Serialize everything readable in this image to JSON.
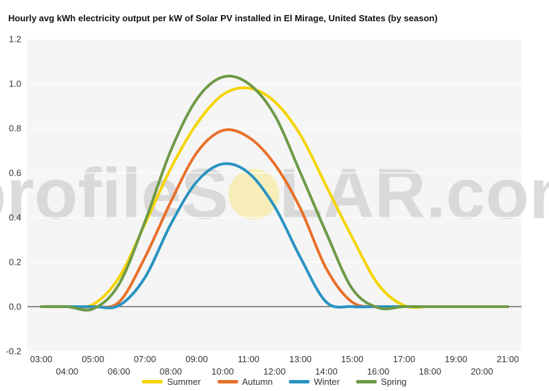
{
  "chart_data": {
    "type": "line",
    "title": "Hourly avg kWh electricity output per kW of Solar PV installed in El Mirage, United States (by season)",
    "x": [
      "03:00",
      "04:00",
      "05:00",
      "06:00",
      "07:00",
      "08:00",
      "09:00",
      "10:00",
      "11:00",
      "12:00",
      "13:00",
      "14:00",
      "15:00",
      "16:00",
      "17:00",
      "18:00",
      "19:00",
      "20:00",
      "21:00"
    ],
    "ylim": [
      -0.2,
      1.2
    ],
    "yticks": [
      -0.2,
      0.0,
      0.2,
      0.4,
      0.6,
      0.8,
      1.0,
      1.2
    ],
    "grid": true,
    "legend_position": "bottom",
    "series": [
      {
        "name": "Summer",
        "color": "#f5d400",
        "values": [
          0,
          0,
          0.01,
          0.13,
          0.37,
          0.62,
          0.82,
          0.95,
          0.98,
          0.92,
          0.77,
          0.54,
          0.31,
          0.1,
          0.005,
          0,
          0,
          0,
          0
        ]
      },
      {
        "name": "Autumn",
        "color": "#e8702a",
        "values": [
          0,
          0,
          0,
          0.02,
          0.22,
          0.47,
          0.69,
          0.79,
          0.76,
          0.64,
          0.44,
          0.17,
          0.02,
          0,
          0,
          0,
          0,
          0,
          0
        ]
      },
      {
        "name": "Winter",
        "color": "#2a93c1",
        "values": [
          0,
          0,
          0,
          0.005,
          0.13,
          0.37,
          0.56,
          0.64,
          0.6,
          0.45,
          0.22,
          0.02,
          0,
          0,
          0,
          0,
          0,
          0,
          0
        ]
      },
      {
        "name": "Spring",
        "color": "#6f9a48",
        "values": [
          0,
          0,
          -0.01,
          0.1,
          0.38,
          0.7,
          0.93,
          1.03,
          1.0,
          0.86,
          0.6,
          0.33,
          0.08,
          -0.005,
          0,
          0,
          0,
          0,
          0
        ]
      }
    ],
    "watermark": {
      "text_left": "profileS",
      "text_right": "LAR.com"
    }
  }
}
